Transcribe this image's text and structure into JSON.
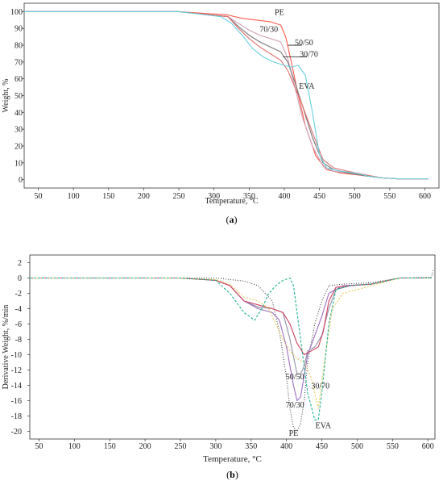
{
  "chart_data": [
    {
      "type": "line",
      "panel_label_prefix": "(",
      "panel_label": "a",
      "panel_label_suffix": ")",
      "xlabel": "Temperature, °C",
      "ylabel": "Weight, %",
      "xlim": [
        30,
        620
      ],
      "ylim": [
        -5,
        105
      ],
      "xticks": [
        50,
        100,
        150,
        200,
        250,
        300,
        350,
        400,
        450,
        500,
        550,
        600
      ],
      "yticks": [
        0,
        10,
        20,
        30,
        40,
        50,
        60,
        70,
        80,
        90,
        100
      ],
      "grid": false,
      "series": [
        {
          "color": "#ff5a4e",
          "x": [
            30,
            250,
            320,
            340,
            360,
            380,
            395,
            402,
            410,
            420,
            430,
            445,
            460,
            480,
            500,
            520,
            540,
            560,
            605
          ],
          "y": [
            100,
            100,
            98,
            96,
            95,
            94,
            92,
            85,
            70,
            50,
            32,
            14,
            6,
            4,
            3,
            2,
            1,
            0.5,
            0.5
          ]
        },
        {
          "color": "#d0a0b8",
          "x": [
            30,
            250,
            320,
            335,
            350,
            365,
            380,
            395,
            405,
            415,
            425,
            440,
            455,
            470,
            490,
            520,
            540,
            560,
            605
          ],
          "y": [
            100,
            100,
            97,
            93,
            89,
            86,
            84,
            82,
            72,
            55,
            38,
            20,
            8,
            5,
            4,
            2,
            1,
            0.5,
            0.5
          ]
        },
        {
          "color": "#777777",
          "x": [
            30,
            250,
            320,
            335,
            350,
            365,
            380,
            395,
            405,
            415,
            425,
            440,
            455,
            470,
            490,
            520,
            540,
            560,
            605
          ],
          "y": [
            100,
            100,
            97,
            91,
            86,
            82,
            79,
            76,
            70,
            58,
            45,
            25,
            10,
            6,
            4,
            2,
            1,
            0.5,
            0.5
          ]
        },
        {
          "color": "#e07070",
          "x": [
            30,
            250,
            320,
            335,
            350,
            365,
            380,
            395,
            405,
            415,
            425,
            440,
            455,
            470,
            490,
            520,
            540,
            560,
            605
          ],
          "y": [
            100,
            100,
            97,
            90,
            84,
            79,
            75,
            71,
            65,
            55,
            45,
            28,
            12,
            7,
            5,
            2.5,
            1,
            0.5,
            0.5
          ]
        },
        {
          "color": "#66d0e0",
          "x": [
            30,
            250,
            310,
            325,
            340,
            355,
            370,
            385,
            400,
            410,
            420,
            430,
            440,
            450,
            460,
            480,
            500,
            520,
            540,
            560,
            605
          ],
          "y": [
            100,
            100,
            97,
            93,
            86,
            78,
            73,
            70,
            68,
            67,
            68,
            62,
            40,
            15,
            7,
            5,
            4,
            2,
            1,
            0.5,
            0.5
          ]
        }
      ],
      "annotations": [
        {
          "text": "PE",
          "x": 393,
          "y": 98
        },
        {
          "text": "70/30",
          "x": 378,
          "y": 88
        },
        {
          "text": "50/50",
          "x": 428,
          "y": 80
        },
        {
          "text": "30/70",
          "x": 435,
          "y": 73
        },
        {
          "text": "EVA",
          "x": 432,
          "y": 54
        }
      ]
    },
    {
      "type": "line",
      "panel_label_prefix": "(",
      "panel_label": "b",
      "panel_label_suffix": ")",
      "xlabel": "Temperature, °C",
      "ylabel": "Derivative Weight, %/min",
      "xlim": [
        37,
        610
      ],
      "ylim": [
        -21,
        3
      ],
      "xticks": [
        50,
        100,
        150,
        200,
        250,
        300,
        350,
        400,
        450,
        500,
        550,
        600
      ],
      "yticks": [
        2,
        0,
        -2,
        -4,
        -6,
        -8,
        -10,
        -12,
        -14,
        -16,
        -18,
        -20
      ],
      "grid": false,
      "series": [
        {
          "color": "#444444",
          "dash": "1,2",
          "x": [
            37,
            250,
            300,
            340,
            360,
            380,
            390,
            400,
            405,
            410,
            415,
            420,
            425,
            430,
            440,
            450,
            460,
            480,
            520,
            560,
            605,
            608
          ],
          "y": [
            0,
            0,
            0,
            -0.4,
            -1,
            -3,
            -7,
            -13,
            -17,
            -19.5,
            -20,
            -19,
            -16,
            -11,
            -6,
            -3,
            -1,
            -0.8,
            -0.6,
            0,
            0.1,
            1.2
          ]
        },
        {
          "color": "#a070c0",
          "x": [
            37,
            250,
            300,
            320,
            340,
            360,
            380,
            390,
            400,
            410,
            415,
            420,
            430,
            440,
            450,
            460,
            480,
            520,
            560,
            605
          ],
          "y": [
            0,
            0,
            -0.3,
            -1,
            -3,
            -4,
            -4.5,
            -5.5,
            -9,
            -14,
            -16,
            -15.5,
            -10,
            -7.5,
            -5,
            -2,
            -1,
            -0.8,
            0,
            0
          ]
        },
        {
          "color": "#9090a8",
          "x": [
            37,
            250,
            300,
            320,
            340,
            360,
            380,
            395,
            405,
            415,
            420,
            425,
            430,
            440,
            450,
            460,
            470,
            490,
            520,
            560,
            605
          ],
          "y": [
            0,
            0,
            -0.3,
            -1,
            -3,
            -3.8,
            -4,
            -4.5,
            -8,
            -12.5,
            -12.5,
            -11.5,
            -9.5,
            -9,
            -7.5,
            -4,
            -1.5,
            -1,
            -0.8,
            0,
            0
          ]
        },
        {
          "color": "#d04060",
          "x": [
            37,
            250,
            300,
            320,
            340,
            360,
            380,
            395,
            405,
            415,
            425,
            435,
            445,
            452,
            460,
            470,
            490,
            520,
            560,
            605
          ],
          "y": [
            0,
            0,
            -0.3,
            -1,
            -3,
            -3.5,
            -4,
            -4.5,
            -6,
            -8.5,
            -10,
            -9.5,
            -9,
            -7,
            -3,
            -1.2,
            -1,
            -0.8,
            0,
            0
          ]
        },
        {
          "color": "#e8c858",
          "dash": "2,2",
          "x": [
            37,
            250,
            300,
            320,
            340,
            360,
            375,
            385,
            395,
            405,
            415,
            425,
            435,
            440,
            445,
            455,
            465,
            480,
            520,
            560,
            605
          ],
          "y": [
            0,
            0,
            -0.2,
            -0.8,
            -2.5,
            -3,
            -4,
            -6,
            -8,
            -9.5,
            -10.5,
            -11,
            -13,
            -15,
            -17,
            -10,
            -4,
            -2,
            -1,
            0,
            0
          ]
        },
        {
          "color": "#20b090",
          "dash": "3,2",
          "x": [
            37,
            250,
            300,
            320,
            340,
            355,
            365,
            375,
            385,
            395,
            405,
            410,
            420,
            430,
            440,
            445,
            450,
            460,
            470,
            490,
            520,
            560,
            605
          ],
          "y": [
            0,
            0,
            -0.3,
            -2,
            -4.5,
            -5.5,
            -4,
            -2,
            -1,
            -0.3,
            0,
            -1,
            -8,
            -15,
            -18.5,
            -18.5,
            -15,
            -6,
            -1.5,
            -1,
            -0.8,
            0,
            0
          ]
        }
      ],
      "annotations": [
        {
          "text": "50/50",
          "x": 412,
          "y": -13.2
        },
        {
          "text": "30/70",
          "x": 448,
          "y": -14.4
        },
        {
          "text": "70/30",
          "x": 412,
          "y": -16.9
        },
        {
          "text": "EVA",
          "x": 452,
          "y": -19.6
        },
        {
          "text": "PE",
          "x": 410,
          "y": -20.6
        }
      ]
    }
  ]
}
